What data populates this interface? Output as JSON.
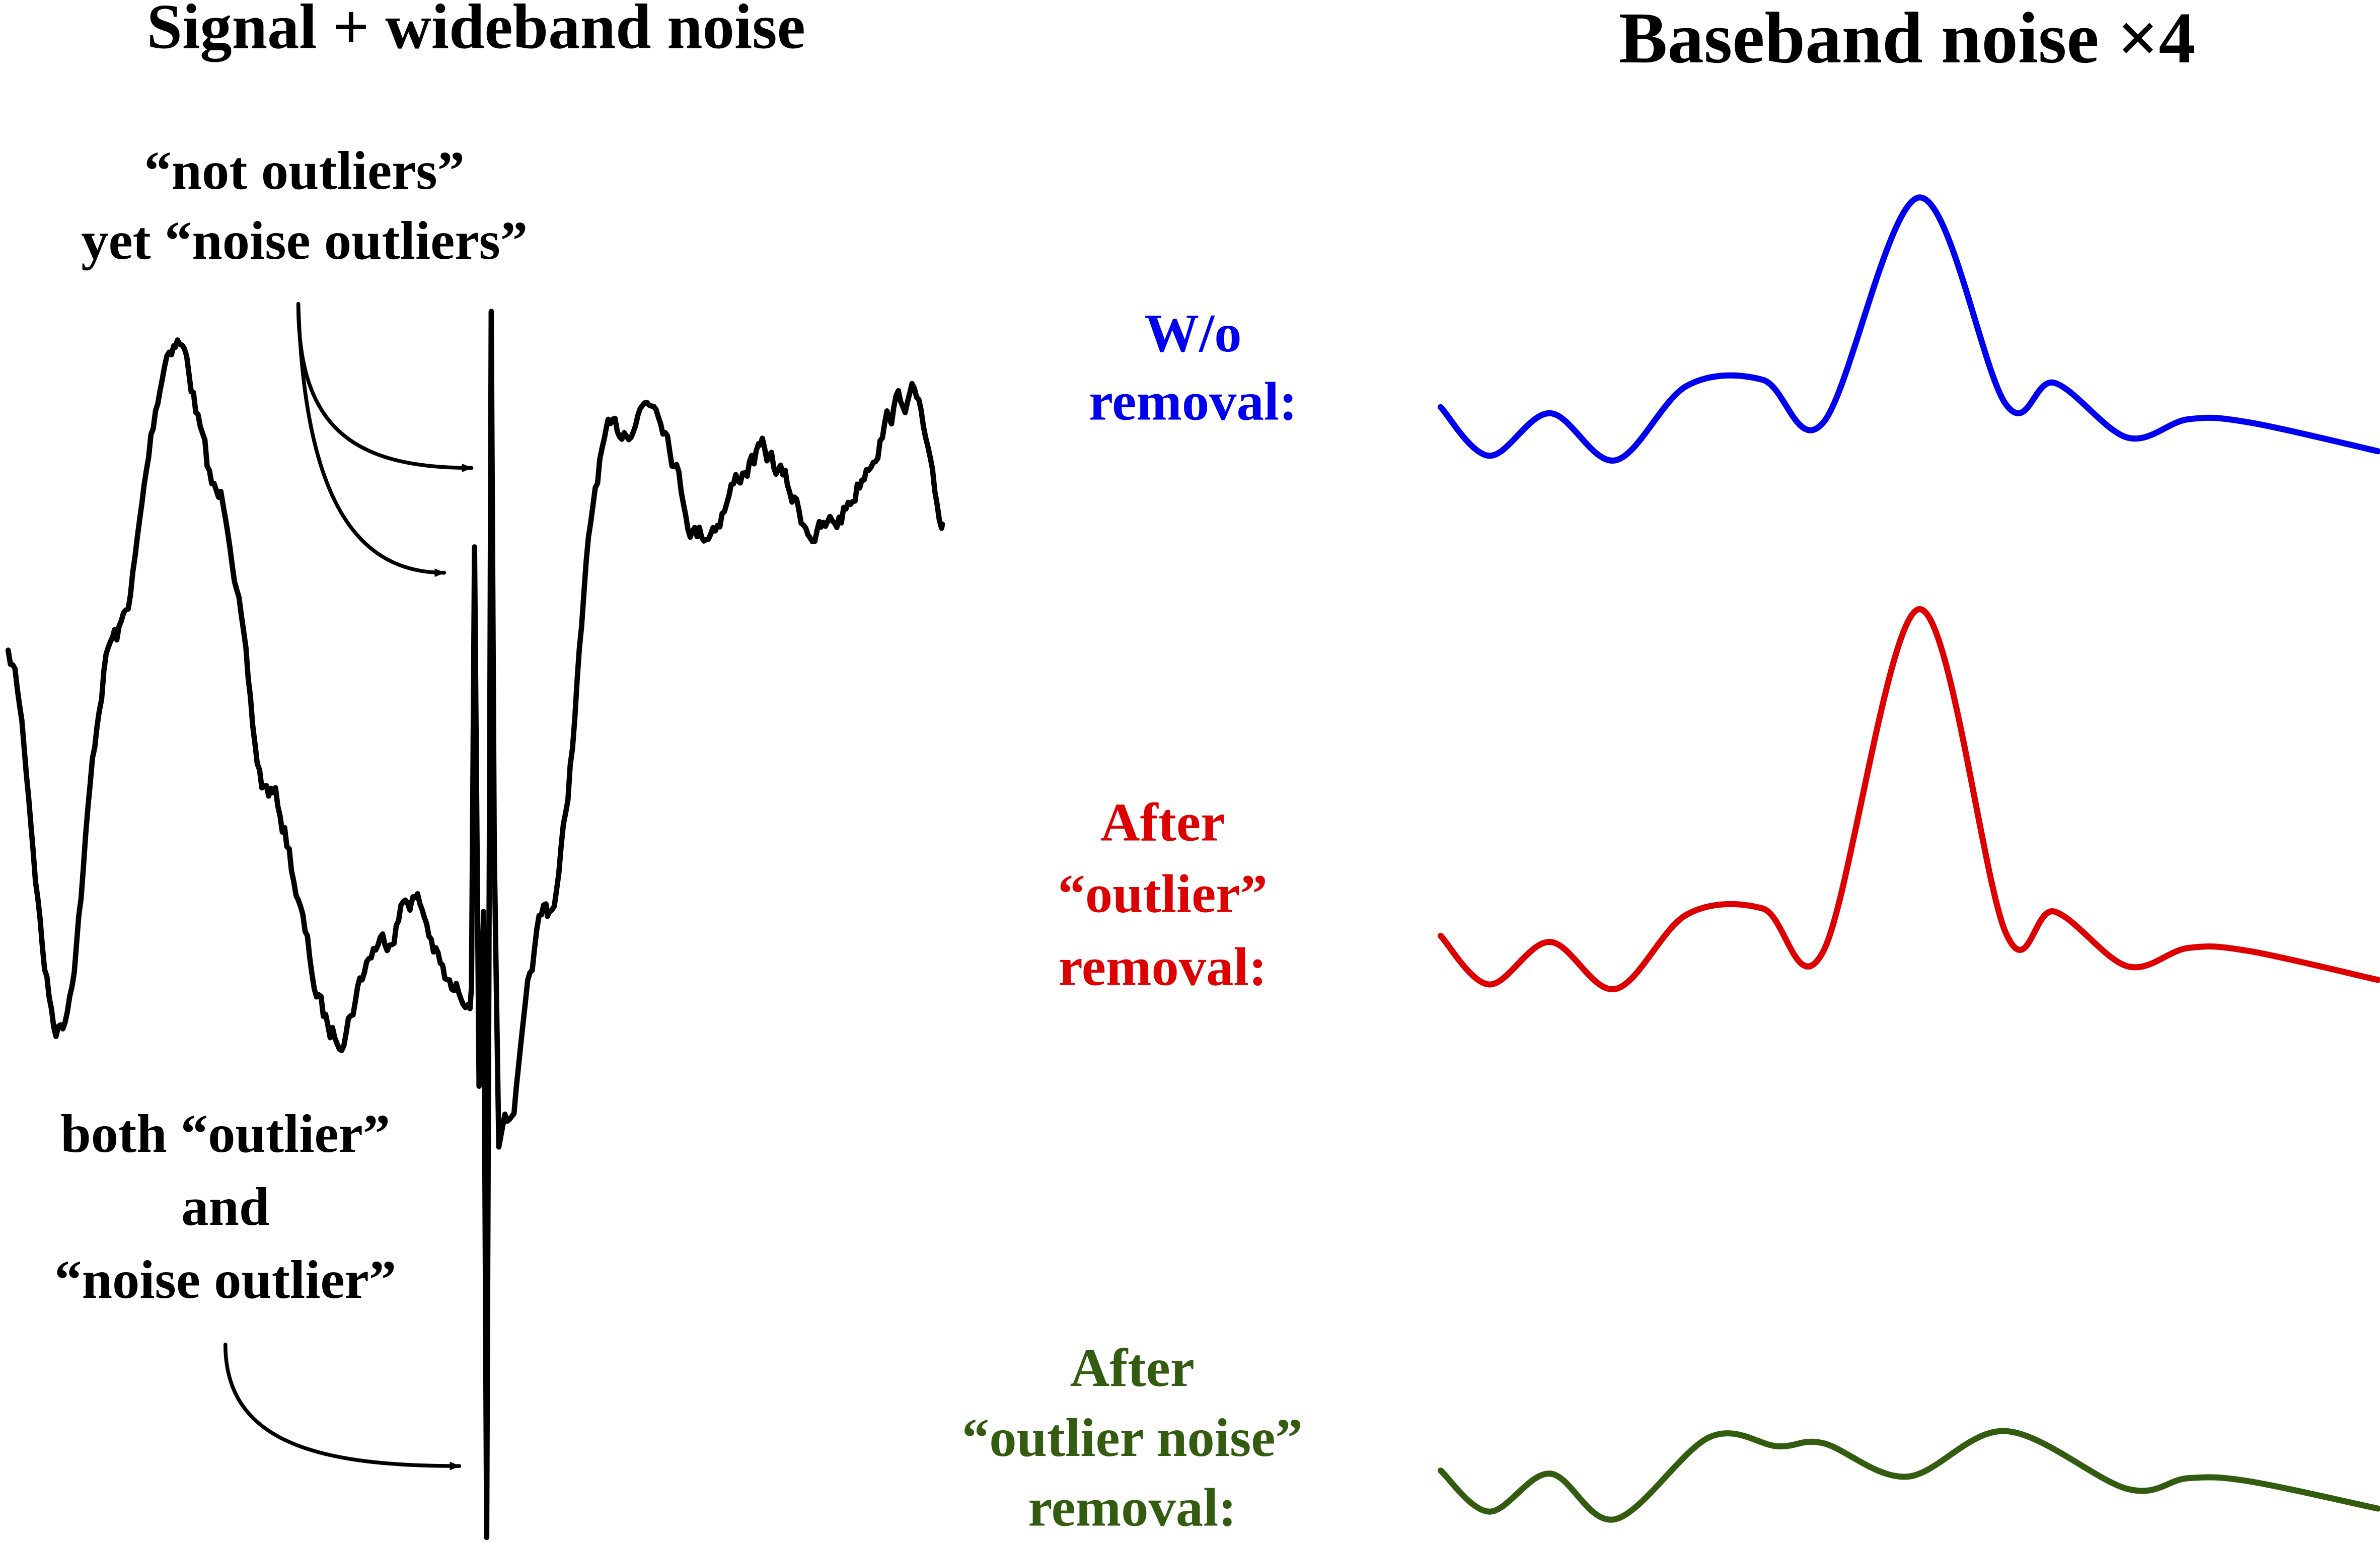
{
  "left": {
    "title": "Signal + wideband noise",
    "annotations": [
      {
        "lines": [
          "“not outliers”",
          "yet “noise outliers”"
        ]
      },
      {
        "lines": [
          "both “outlier”",
          "and",
          "“noise outlier”"
        ]
      }
    ]
  },
  "right": {
    "title": "Baseband noise ×4",
    "traces": [
      {
        "label": [
          "W/o",
          "removal:"
        ]
      },
      {
        "label": [
          "After",
          "“outlier”",
          "removal:"
        ]
      },
      {
        "label": [
          "After",
          "“outlier noise”",
          "removal:"
        ]
      }
    ]
  }
}
